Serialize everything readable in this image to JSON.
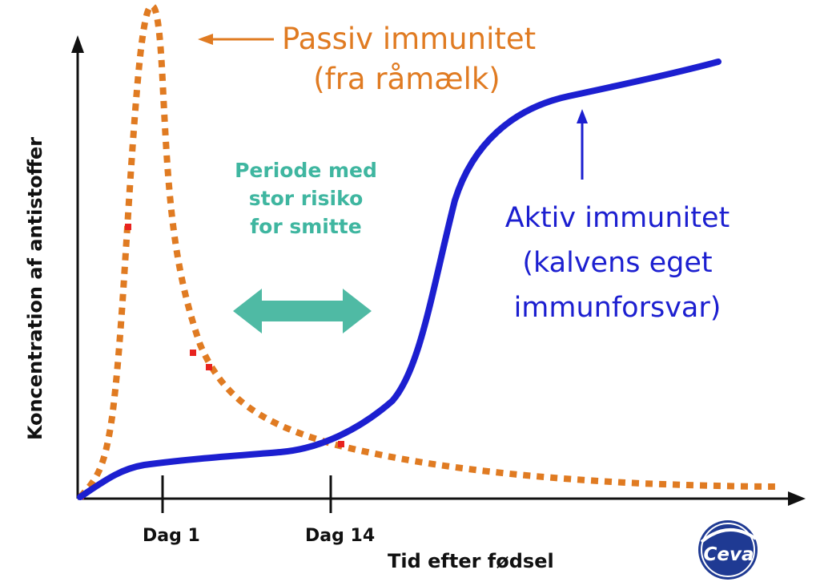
{
  "passive_label": {
    "line1": "Passiv immunitet",
    "line2": "(fra råmælk)"
  },
  "active_label": {
    "line1": "Aktiv immunitet",
    "line2": "(kalvens eget",
    "line3": "immunforsvar)"
  },
  "risk_label": {
    "line1": "Periode med",
    "line2": "stor risiko",
    "line3": "for smitte"
  },
  "axes": {
    "x_title": "Tid efter fødsel",
    "y_title": "Koncentration af antistoffer",
    "ticks": [
      "Dag 1",
      "Dag 14"
    ]
  },
  "logo": {
    "text": "Ceva"
  },
  "colors": {
    "passive": "#e07b22",
    "active": "#1c1fd0",
    "risk": "#4fbaa4",
    "critical_dots": "#e8231f",
    "axis": "#111111"
  }
}
